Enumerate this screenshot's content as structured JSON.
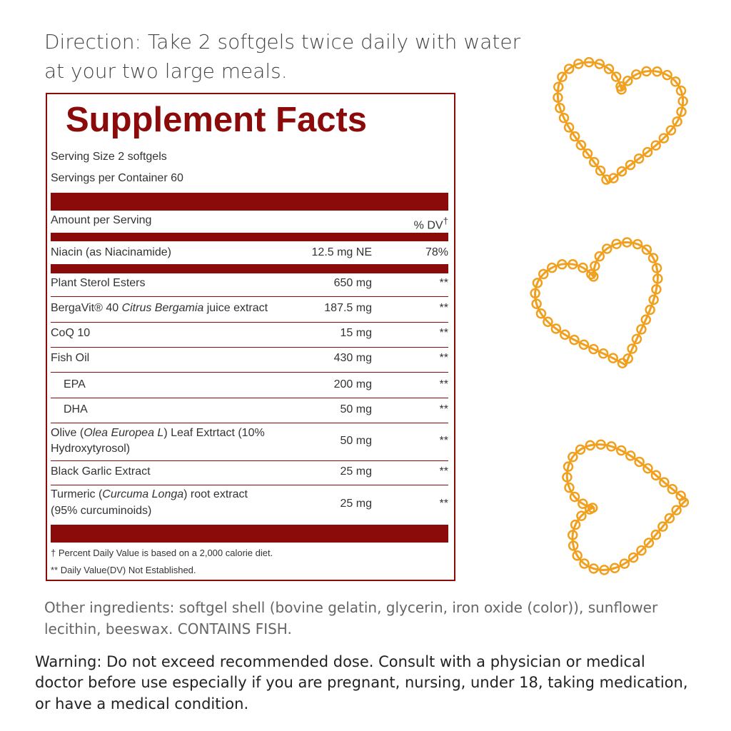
{
  "direction": [
    "Direction: Take 2 softgels twice daily with water",
    "at your two large meals."
  ],
  "facts": {
    "title": "Supplement Facts",
    "serving_size": "Serving Size 2 softgels",
    "servings_per_container": "Servings per Container 60",
    "amount_header": "Amount per Serving",
    "dv_header": [
      "% DV",
      "†"
    ],
    "rows": [
      {
        "name": [
          "Niacin (as Niacinamide)"
        ],
        "amount": "12.5 mg NE",
        "dv": "78%"
      },
      {
        "name": [
          "Plant Sterol Esters"
        ],
        "amount": "650 mg",
        "dv": "**"
      },
      {
        "name": [
          "BergaVit® 40 ",
          "Citrus Bergamia",
          " juice extract"
        ],
        "amount": "187.5 mg",
        "dv": "**"
      },
      {
        "name": [
          "CoQ 10"
        ],
        "amount": "15 mg",
        "dv": "**"
      },
      {
        "name": [
          "Fish Oil"
        ],
        "amount": "430 mg",
        "dv": "**"
      },
      {
        "name": [
          "EPA"
        ],
        "amount": "200 mg",
        "dv": "**"
      },
      {
        "name": [
          "DHA"
        ],
        "amount": "50 mg",
        "dv": "**"
      },
      {
        "name": [
          "Olive (",
          "Olea Europea L",
          ") Leaf Extrtact (10%",
          "Hydroxytyrosol)"
        ],
        "amount": "50 mg",
        "dv": "**"
      },
      {
        "name": [
          "Black Garlic Extract"
        ],
        "amount": "25 mg",
        "dv": "**"
      },
      {
        "name": [
          "Turmeric (",
          "Curcuma Longa",
          ") root extract",
          "(95% curcuminoids)"
        ],
        "amount": "25 mg",
        "dv": "**"
      }
    ],
    "footnotes": [
      "† Percent Daily Value is based on a 2,000 calorie diet.",
      "** Daily Value(DV) Not Established."
    ]
  },
  "other_ingredients": [
    "Other ingredients: softgel shell (bovine gelatin, glycerin, iron oxide (color)), sunflower",
    "lecithin, beeswax. CONTAINS FISH."
  ],
  "warning": [
    "Warning: Do not exceed recommended dose. Consult with a physician or medical",
    "doctor before use especially if you are pregnant, nursing, under 18, taking medication,",
    "or have a medical condition."
  ]
}
